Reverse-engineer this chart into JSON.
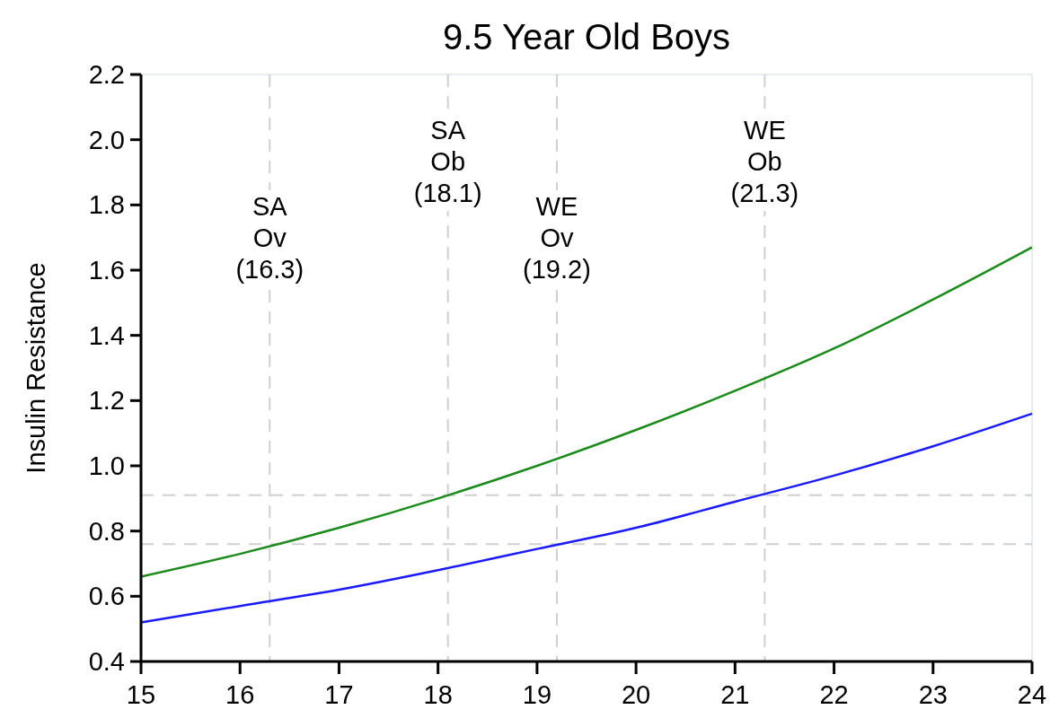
{
  "chart_data": {
    "type": "line",
    "title": "9.5 Year Old Boys",
    "ylabel": "Insulin Resistance",
    "x": [
      15,
      16,
      17,
      18,
      19,
      20,
      21,
      22,
      23,
      24
    ],
    "series": [
      {
        "color": "#1a8a1a",
        "values": [
          0.66,
          0.73,
          0.81,
          0.9,
          1.0,
          1.11,
          1.23,
          1.36,
          1.51,
          1.67
        ]
      },
      {
        "color": "#1a1aff",
        "values": [
          0.52,
          0.57,
          0.62,
          0.68,
          0.745,
          0.81,
          0.89,
          0.97,
          1.06,
          1.16
        ]
      }
    ],
    "xlim": [
      15,
      24
    ],
    "xticks": [
      15,
      16,
      17,
      18,
      19,
      20,
      21,
      22,
      23,
      24
    ],
    "ylim": [
      0.4,
      2.2
    ],
    "yticks": [
      {
        "value": 0.4,
        "label": "0.4"
      },
      {
        "value": 0.6,
        "label": "0.6"
      },
      {
        "value": 0.8,
        "label": "0.8"
      },
      {
        "value": 1.0,
        "label": "1.0"
      },
      {
        "value": 1.2,
        "label": "1.2"
      },
      {
        "value": 1.4,
        "label": "1.4"
      },
      {
        "value": 1.6,
        "label": "1.6"
      },
      {
        "value": 1.8,
        "label": "1.8"
      },
      {
        "value": 2.0,
        "label": "2.0"
      },
      {
        "value": 2.2,
        "label": "2.2"
      }
    ],
    "ref_lines": [
      {
        "axis": "x",
        "value": 16.3,
        "label": "SA\nOv\n(16.3)",
        "color": "#d0d0d0",
        "line_style": "dashed"
      },
      {
        "axis": "x",
        "value": 18.1,
        "label": "SA\nOb\n(18.1)",
        "color": "#d0d0d0",
        "line_style": "dashed"
      },
      {
        "axis": "x",
        "value": 19.2,
        "label": "WE\nOv\n(19.2)",
        "color": "#d0d0d0",
        "line_style": "dashed"
      },
      {
        "axis": "x",
        "value": 21.3,
        "label": "WE\nOb\n(21.3)",
        "color": "#d0d0d0",
        "line_style": "dashed"
      },
      {
        "axis": "y",
        "value": 0.91,
        "color": "#d0d0d0",
        "line_style": "dashed"
      },
      {
        "axis": "y",
        "value": 0.76,
        "color": "#d0d0d0",
        "line_style": "dashed"
      }
    ],
    "grid": false,
    "marker": "none",
    "line_style": "solid"
  }
}
